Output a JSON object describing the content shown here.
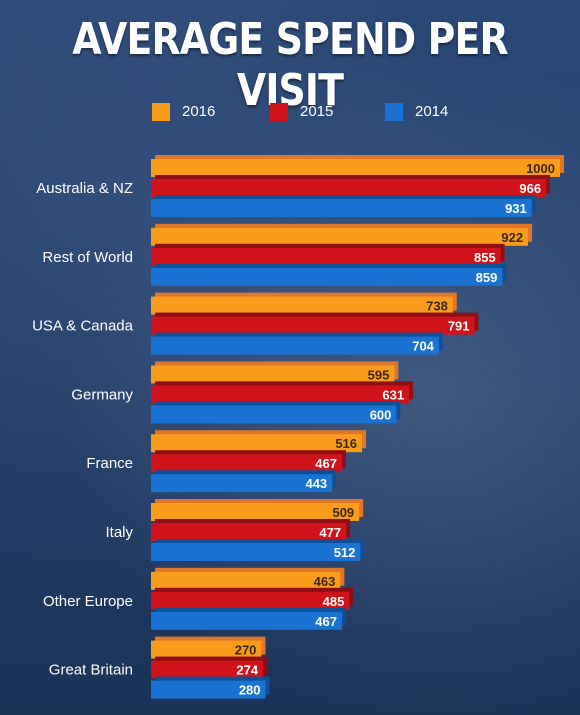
{
  "title": "AVERAGE SPEND PER VISIT",
  "colors": {
    "s2016": "#f99c1c",
    "s2016_shadow": "#e0762a",
    "s2015": "#d0131b",
    "s2015_shadow": "#8f0e14",
    "s2014": "#1a73d2",
    "s2014_shadow": "#0e4f99",
    "background": "#24406b"
  },
  "legend": {
    "items": [
      {
        "label": "2016",
        "color": "#f99c1c"
      },
      {
        "label": "2015",
        "color": "#d0131b"
      },
      {
        "label": "2014",
        "color": "#1a73d2"
      }
    ]
  },
  "chart_data": {
    "type": "bar",
    "orientation": "horizontal",
    "title": "AVERAGE SPEND PER VISIT",
    "categories": [
      "Australia & NZ",
      "Rest of World",
      "USA & Canada",
      "Germany",
      "France",
      "Italy",
      "Other Europe",
      "Great Britain"
    ],
    "series": [
      {
        "name": "2016",
        "values": [
          1000,
          922,
          738,
          595,
          516,
          509,
          463,
          270
        ]
      },
      {
        "name": "2015",
        "values": [
          966,
          855,
          791,
          631,
          467,
          477,
          485,
          274
        ]
      },
      {
        "name": "2014",
        "values": [
          931,
          859,
          704,
          600,
          443,
          512,
          467,
          280
        ]
      }
    ],
    "xlim": [
      0,
      1000
    ],
    "grid": false,
    "legend_position": "top"
  }
}
